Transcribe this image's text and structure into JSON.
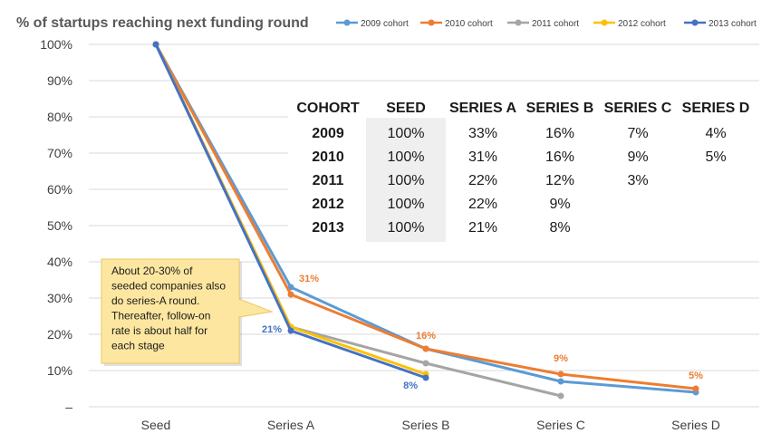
{
  "chart_data": {
    "type": "line",
    "title": "% of startups reaching next funding round",
    "categories": [
      "Seed",
      "Series A",
      "Series B",
      "Series C",
      "Series D"
    ],
    "y_ticks": [
      "100%",
      "90%",
      "80%",
      "70%",
      "60%",
      "50%",
      "40%",
      "30%",
      "20%",
      "10%",
      "–"
    ],
    "ylim": [
      0,
      100
    ],
    "grid": true,
    "legend_position": "top-right",
    "series": [
      {
        "name": "2009 cohort",
        "color": "#5B9BD5",
        "values": [
          100,
          33,
          16,
          7,
          4
        ]
      },
      {
        "name": "2010 cohort",
        "color": "#ED7D31",
        "values": [
          100,
          31,
          16,
          9,
          5
        ]
      },
      {
        "name": "2011 cohort",
        "color": "#A5A5A5",
        "values": [
          100,
          22,
          12,
          3,
          null
        ]
      },
      {
        "name": "2012 cohort",
        "color": "#FFC000",
        "values": [
          100,
          22,
          9,
          null,
          null
        ]
      },
      {
        "name": "2013 cohort",
        "color": "#4472C4",
        "values": [
          100,
          21,
          8,
          null,
          null
        ]
      }
    ],
    "data_labels": [
      {
        "text": "31%",
        "series": 1,
        "index": 1,
        "color": "#ED7D31"
      },
      {
        "text": "16%",
        "series": 1,
        "index": 2,
        "color": "#ED7D31"
      },
      {
        "text": "9%",
        "series": 1,
        "index": 3,
        "color": "#ED7D31"
      },
      {
        "text": "5%",
        "series": 1,
        "index": 4,
        "color": "#ED7D31"
      },
      {
        "text": "21%",
        "series": 4,
        "index": 1,
        "color": "#4472C4"
      },
      {
        "text": "8%",
        "series": 4,
        "index": 2,
        "color": "#4472C4"
      }
    ],
    "table": {
      "headers": [
        "COHORT",
        "SEED",
        "SERIES A",
        "SERIES B",
        "SERIES C",
        "SERIES D"
      ],
      "rows": [
        [
          "2009",
          "100%",
          "33%",
          "16%",
          "7%",
          "4%"
        ],
        [
          "2010",
          "100%",
          "31%",
          "16%",
          "9%",
          "5%"
        ],
        [
          "2011",
          "100%",
          "22%",
          "12%",
          "3%",
          ""
        ],
        [
          "2012",
          "100%",
          "22%",
          "9%",
          "",
          ""
        ],
        [
          "2013",
          "100%",
          "21%",
          "8%",
          "",
          ""
        ]
      ]
    },
    "callout": {
      "lines": [
        "About 20-30% of",
        "seeded companies also",
        "do series-A round.",
        "Thereafter, follow-on",
        "rate is about half for",
        "each stage"
      ]
    }
  }
}
